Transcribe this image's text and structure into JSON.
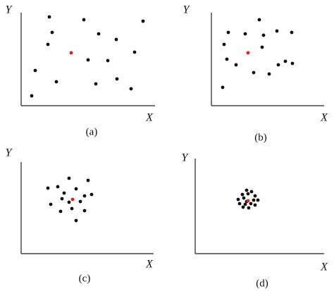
{
  "chart_data": [
    {
      "type": "scatter",
      "caption": "(a)",
      "x_label": "X",
      "y_label": "Y",
      "color": "#111",
      "xlim": [
        0,
        190
      ],
      "ylim": [
        0,
        132
      ],
      "x": [
        40,
        89,
        173,
        44,
        110,
        135,
        38,
        161,
        95,
        123,
        20,
        50,
        106,
        136,
        156,
        15
      ],
      "values": [
        126,
        122,
        120,
        104,
        102,
        94,
        87,
        76,
        65,
        64,
        50,
        34,
        31,
        38,
        24,
        14
      ],
      "center": {
        "x": 71,
        "y": 75,
        "color": "#e0201b"
      }
    },
    {
      "type": "scatter",
      "caption": "(b)",
      "x_label": "X",
      "y_label": "Y",
      "color": "#111",
      "xlim": [
        0,
        160
      ],
      "ylim": [
        0,
        132
      ],
      "x": [
        68,
        24,
        48,
        74,
        93,
        114,
        18,
        72,
        22,
        35,
        60,
        82,
        105,
        115,
        95,
        16
      ],
      "values": [
        122,
        104,
        102,
        100,
        106,
        104,
        87,
        83,
        66,
        58,
        47,
        45,
        63,
        60,
        58,
        26
      ],
      "center": {
        "x": 52,
        "y": 75,
        "color": "#e0201b"
      }
    },
    {
      "type": "scatter",
      "caption": "(c)",
      "x_label": "X",
      "y_label": "Y",
      "color": "#111",
      "xlim": [
        0,
        188
      ],
      "ylim": [
        0,
        130
      ],
      "x": [
        68,
        95,
        38,
        52,
        78,
        61,
        90,
        100,
        58,
        68,
        84,
        42,
        72,
        56,
        90,
        78
      ],
      "values": [
        107,
        104,
        93,
        95,
        92,
        86,
        82,
        84,
        78,
        73,
        74,
        70,
        64,
        60,
        61,
        47
      ],
      "center": {
        "x": 73,
        "y": 77,
        "color": "#e0201b"
      }
    },
    {
      "type": "scatter",
      "caption": "(d)",
      "x_label": "X",
      "y_label": "Y",
      "color": "#111",
      "xlim": [
        0,
        183
      ],
      "ylim": [
        0,
        135
      ],
      "x": [
        73,
        80,
        67,
        85,
        75,
        61,
        69,
        83,
        89,
        63,
        71,
        79,
        68,
        76,
        85,
        73
      ],
      "values": [
        90,
        88,
        84,
        82,
        85,
        77,
        79,
        76,
        76,
        71,
        70,
        71,
        66,
        65,
        69,
        74
      ],
      "center": {
        "x": 75,
        "y": 75,
        "color": "#e0201b"
      }
    }
  ]
}
